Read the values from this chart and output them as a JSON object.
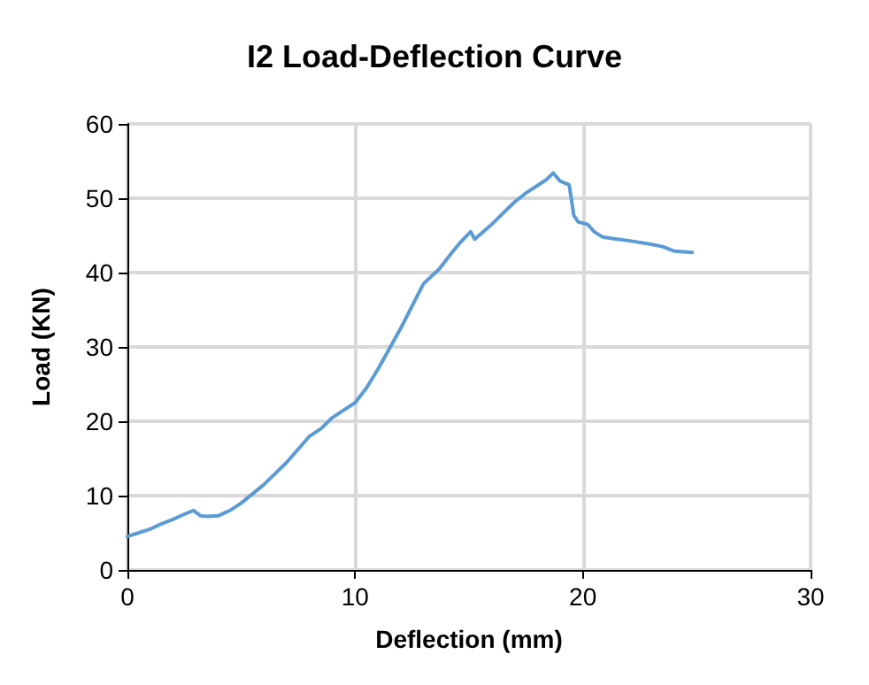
{
  "chart_data": {
    "type": "line",
    "title": "I2 Load-Deflection Curve",
    "xlabel": "Deflection (mm)",
    "ylabel": "Load (KN)",
    "xlim": [
      0,
      30
    ],
    "xticks": [
      0,
      10,
      20,
      30
    ],
    "ylim": [
      0,
      60
    ],
    "yticks": [
      0,
      10,
      20,
      30,
      40,
      50,
      60
    ],
    "grid": true,
    "marker": "none",
    "line_style": "solid",
    "series": [
      {
        "color": "#5b9bd5",
        "x": [
          0,
          0.5,
          1,
          1.5,
          2,
          2.5,
          2.9,
          3.2,
          3.5,
          4,
          4.5,
          5,
          6,
          7,
          8,
          8.5,
          9,
          9.5,
          10,
          10.5,
          11,
          12,
          13,
          13.7,
          14.2,
          14.6,
          15.07,
          15.25,
          16,
          17,
          17.5,
          18,
          18.4,
          18.7,
          19,
          19.4,
          19.6,
          19.8,
          20.2,
          20.5,
          20.85,
          21.5,
          22,
          23,
          23.5,
          24,
          24.8
        ],
        "values": [
          4.5,
          5,
          5.5,
          6.2,
          6.8,
          7.5,
          8,
          7.3,
          7.2,
          7.3,
          8,
          9,
          11.5,
          14.5,
          18,
          19,
          20.5,
          21.5,
          22.5,
          24.5,
          27,
          32.5,
          38.5,
          40.5,
          42.5,
          44,
          45.5,
          44.5,
          46.5,
          49.5,
          50.7,
          51.7,
          52.5,
          53.4,
          52.3,
          51.8,
          47.7,
          46.8,
          46.5,
          45.5,
          44.8,
          44.5,
          44.3,
          43.8,
          43.5,
          42.9,
          42.7
        ]
      }
    ]
  }
}
